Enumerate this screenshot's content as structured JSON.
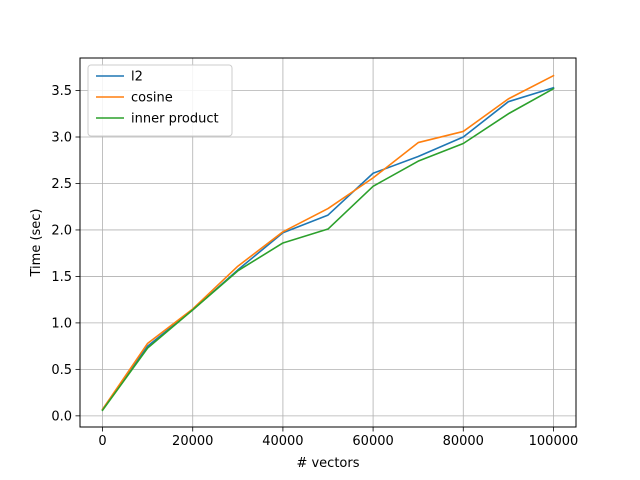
{
  "chart_data": {
    "type": "line",
    "xlabel": "# vectors",
    "ylabel": "Time (sec)",
    "xlim": [
      -5000,
      105000
    ],
    "ylim": [
      -0.12,
      3.85
    ],
    "xticks": [
      0,
      20000,
      40000,
      60000,
      80000,
      100000
    ],
    "xtick_labels": [
      "0",
      "20000",
      "40000",
      "60000",
      "80000",
      "100000"
    ],
    "yticks": [
      0.0,
      0.5,
      1.0,
      1.5,
      2.0,
      2.5,
      3.0,
      3.5
    ],
    "ytick_labels": [
      "0.0",
      "0.5",
      "1.0",
      "1.5",
      "2.0",
      "2.5",
      "3.0",
      "3.5"
    ],
    "grid": true,
    "legend_position": "top-left",
    "x": [
      0,
      10000,
      20000,
      30000,
      40000,
      50000,
      60000,
      70000,
      80000,
      90000,
      100000
    ],
    "series": [
      {
        "name": "l2",
        "color": "#1f77b4",
        "values": [
          0.07,
          0.75,
          1.14,
          1.57,
          1.97,
          2.16,
          2.61,
          2.79,
          3.0,
          3.38,
          3.53
        ]
      },
      {
        "name": "cosine",
        "color": "#ff7f0e",
        "values": [
          0.07,
          0.78,
          1.15,
          1.61,
          1.98,
          2.23,
          2.56,
          2.94,
          3.06,
          3.41,
          3.66
        ]
      },
      {
        "name": "inner product",
        "color": "#2ca02c",
        "values": [
          0.06,
          0.73,
          1.14,
          1.56,
          1.86,
          2.01,
          2.47,
          2.74,
          2.93,
          3.25,
          3.52
        ]
      }
    ]
  }
}
